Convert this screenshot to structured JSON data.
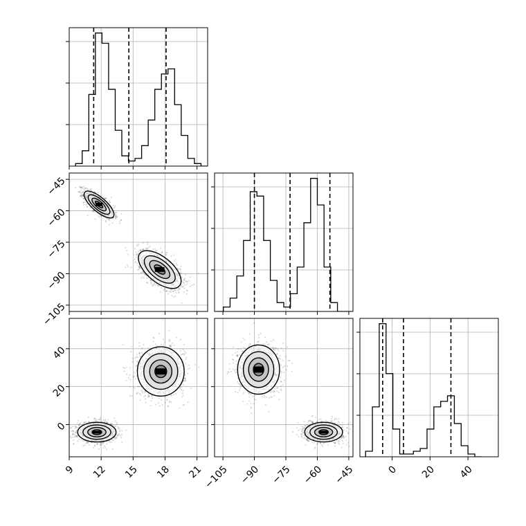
{
  "chart_data": {
    "type": "corner",
    "parameters": [
      "",
      "",
      ""
    ],
    "grid": true,
    "panels": [
      {
        "kind": "histogram",
        "param": 0,
        "xlim": [
          9,
          22
        ],
        "bins": {
          "start": 9.6,
          "width": 0.62,
          "counts": [
            1,
            6,
            28,
            52,
            48,
            30,
            14,
            4,
            2,
            3,
            8,
            18,
            30,
            36,
            38,
            24,
            12,
            3,
            1,
            0
          ]
        },
        "quantile_lines": [
          11.3,
          14.6,
          18.1
        ]
      },
      {
        "kind": "histogram",
        "param": 1,
        "xlim": [
          -109,
          -43
        ],
        "bins": {
          "start": -108,
          "width": 3.2,
          "counts": [
            0,
            1,
            3,
            8,
            16,
            27,
            26,
            16,
            7,
            2,
            1,
            4,
            10,
            20,
            30,
            24,
            10,
            2,
            0,
            0
          ]
        },
        "quantile_lines": [
          -90,
          -73,
          -54
        ]
      },
      {
        "kind": "histogram",
        "param": 2,
        "xlim": [
          -17,
          56
        ],
        "bins": {
          "start": -14,
          "width": 3.6,
          "counts": [
            2,
            18,
            48,
            30,
            10,
            1,
            1,
            2,
            3,
            10,
            18,
            20,
            22,
            12,
            4,
            1,
            0
          ]
        },
        "quantile_lines": [
          -5,
          6,
          31
        ]
      },
      {
        "kind": "scatter2d",
        "params": [
          0,
          1
        ],
        "xlim": [
          9,
          22
        ],
        "ylim": [
          -108,
          -42
        ],
        "clusters": [
          {
            "center": [
              11.8,
              -57
            ],
            "spread": [
              0.7,
              3.2
            ],
            "corr": -0.75,
            "n": 1200
          },
          {
            "center": [
              17.5,
              -88
            ],
            "spread": [
              1.0,
              4.5
            ],
            "corr": -0.6,
            "n": 1300
          }
        ]
      },
      {
        "kind": "scatter2d",
        "params": [
          0,
          2
        ],
        "xlim": [
          9,
          22
        ],
        "ylim": [
          -17,
          56
        ],
        "clusters": [
          {
            "center": [
              11.6,
              -4
            ],
            "spread": [
              0.9,
              2.6
            ],
            "corr": 0,
            "n": 1200
          },
          {
            "center": [
              17.6,
              28
            ],
            "spread": [
              1.1,
              6.5
            ],
            "corr": 0,
            "n": 1300
          }
        ]
      },
      {
        "kind": "scatter2d",
        "params": [
          1,
          2
        ],
        "xlim": [
          -109,
          -43
        ],
        "ylim": [
          -17,
          56
        ],
        "clusters": [
          {
            "center": [
              -88,
              29
            ],
            "spread": [
              5.0,
              6.5
            ],
            "corr": 0,
            "n": 1300
          },
          {
            "center": [
              -57,
              -4
            ],
            "spread": [
              4.5,
              2.6
            ],
            "corr": 0,
            "n": 1200
          }
        ]
      }
    ],
    "ticks": {
      "p0": {
        "values": [
          9,
          12,
          15,
          18,
          21
        ],
        "labels": [
          "9",
          "12",
          "15",
          "18",
          "21"
        ]
      },
      "p1_x": {
        "values": [
          -105,
          -90,
          -75,
          -60,
          -45
        ],
        "labels": [
          "−105",
          "−90",
          "−75",
          "−60",
          "−45"
        ]
      },
      "p1_y": {
        "values": [
          -45,
          -60,
          -75,
          -90,
          -105
        ],
        "labels": [
          "−45",
          "−60",
          "−75",
          "−90",
          "−105"
        ]
      },
      "p2_x": {
        "values": [
          0,
          20,
          40
        ],
        "labels": [
          "0",
          "20",
          "40"
        ]
      },
      "p2_y": {
        "values": [
          40,
          20,
          0
        ],
        "labels": [
          "40",
          "20",
          "0"
        ]
      }
    }
  }
}
